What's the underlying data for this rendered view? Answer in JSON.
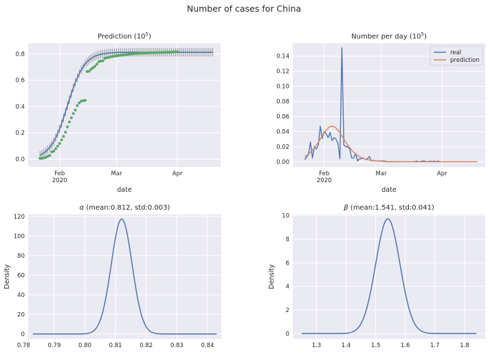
{
  "figure": {
    "title": "Number of cases for China"
  },
  "chart_data": [
    {
      "id": "prediction",
      "type": "line",
      "title": "Prediction (10",
      "title_sup": "5",
      "title_end": ")",
      "xlabel": "date",
      "ylabel": "",
      "ylim": [
        -0.06,
        0.88
      ],
      "xlim": [
        "2020-01-16",
        "2020-04-23"
      ],
      "x_ticks": [
        {
          "date": "2020-02-01",
          "label": "Feb",
          "label2": "2020"
        },
        {
          "date": "2020-03-01",
          "label": "Mar",
          "label2": ""
        },
        {
          "date": "2020-04-01",
          "label": "Apr",
          "label2": ""
        }
      ],
      "y_ticks": [
        0.0,
        0.2,
        0.4,
        0.6,
        0.8
      ],
      "y_tick_labels": [
        "0.0",
        "0.2",
        "0.4",
        "0.6",
        "0.8"
      ],
      "model": {
        "start": "2020-01-22",
        "end": "2020-04-19",
        "asymptote": 0.812,
        "midpoint": "2020-02-05",
        "growth": 0.232,
        "error_band": 0.032
      },
      "observed": {
        "start": "2020-01-22",
        "values": [
          0.006,
          0.006,
          0.009,
          0.014,
          0.021,
          0.029,
          0.055,
          0.061,
          0.079,
          0.098,
          0.119,
          0.146,
          0.173,
          0.205,
          0.245,
          0.283,
          0.314,
          0.346,
          0.373,
          0.407,
          0.427,
          0.441,
          0.444,
          0.447,
          0.666,
          0.668,
          0.683,
          0.694,
          0.706,
          0.722,
          0.741,
          0.745,
          0.747,
          0.765,
          0.77,
          0.773,
          0.777,
          0.78,
          0.783,
          0.785,
          0.787,
          0.789,
          0.791,
          0.793,
          0.794,
          0.796,
          0.798,
          0.8,
          0.802,
          0.803,
          0.804,
          0.805,
          0.806,
          0.806,
          0.807,
          0.807,
          0.808,
          0.808,
          0.809,
          0.809,
          0.809,
          0.81,
          0.81,
          0.811,
          0.811,
          0.812,
          0.812,
          0.813,
          0.814,
          0.815,
          0.815
        ]
      },
      "colors": {
        "model": "#4c72b0",
        "observed": "#55a868",
        "error_bars": "#8c8c8c"
      }
    },
    {
      "id": "per-day",
      "type": "line",
      "title": "Number per day (10",
      "title_sup": "5",
      "title_end": ")",
      "xlabel": "date",
      "ylabel": "",
      "ylim": [
        -0.007,
        0.157
      ],
      "xlim": [
        "2020-01-16",
        "2020-04-23"
      ],
      "x_ticks": [
        {
          "date": "2020-02-01",
          "label": "Feb",
          "label2": "2020"
        },
        {
          "date": "2020-03-01",
          "label": "Mar",
          "label2": ""
        },
        {
          "date": "2020-04-01",
          "label": "Apr",
          "label2": ""
        }
      ],
      "y_ticks": [
        0.0,
        0.02,
        0.04,
        0.06,
        0.08,
        0.1,
        0.12,
        0.14
      ],
      "y_tick_labels": [
        "0.00",
        "0.02",
        "0.04",
        "0.06",
        "0.08",
        "0.10",
        "0.12",
        "0.14"
      ],
      "legend": {
        "placement": "top-right",
        "entries": [
          "real",
          "prediction"
        ]
      },
      "series": [
        {
          "name": "real",
          "start": "2020-01-22",
          "values": [
            0.003,
            0.006,
            0.01,
            0.026,
            0.005,
            0.02,
            0.017,
            0.022,
            0.047,
            0.031,
            0.04,
            0.037,
            0.032,
            0.039,
            0.028,
            0.032,
            0.03,
            0.024,
            0.004,
            0.151,
            0.022,
            0.02,
            0.02,
            0.017,
            0.005,
            0.005,
            0.011,
            0.001,
            0.004,
            0.004,
            0.005,
            0.003,
            0.004,
            0.007,
            0.001,
            0.002,
            0.001,
            0.001,
            0.001,
            0.001,
            0.001,
            0.001,
            0.0,
            0.0,
            0.0,
            0.0,
            0.0,
            0.0,
            0.0,
            0.0,
            0.0,
            0.0,
            0.0,
            0.0,
            0.0,
            0.0,
            0.0,
            0.001,
            0.0,
            0.0,
            0.001,
            0.001,
            0.0,
            0.0,
            0.001,
            0.0,
            0.001,
            0.0,
            0.001,
            0.0,
            0.0
          ],
          "color": "#4c72b0"
        },
        {
          "name": "prediction",
          "model": "logistic-derivative",
          "color": "#dd8452"
        }
      ]
    },
    {
      "id": "alpha",
      "type": "line",
      "title_symbol": "α",
      "title": " (mean:0.812, std:0.003)",
      "xlabel": "",
      "ylabel": "Density",
      "xlim": [
        0.7815,
        0.8445
      ],
      "ylim": [
        -5,
        122
      ],
      "x_ticks": [
        0.78,
        0.79,
        0.8,
        0.81,
        0.82,
        0.83,
        0.84
      ],
      "x_tick_labels": [
        "0.78",
        "0.79",
        "0.80",
        "0.81",
        "0.82",
        "0.83",
        "0.84"
      ],
      "y_ticks": [
        0,
        20,
        40,
        60,
        80,
        100,
        120
      ],
      "y_tick_labels": [
        "0",
        "20",
        "40",
        "60",
        "80",
        "100",
        "120"
      ],
      "density": {
        "mean": 0.812,
        "std": 0.0034,
        "range": [
          0.783,
          0.843
        ]
      },
      "color": "#4c72b0"
    },
    {
      "id": "beta",
      "type": "line",
      "title_symbol": "β",
      "title": " (mean:1.541, std:0.041)",
      "xlabel": "",
      "ylabel": "Density",
      "xlim": [
        1.22,
        1.87
      ],
      "ylim": [
        -0.45,
        10.1
      ],
      "x_ticks": [
        1.3,
        1.4,
        1.5,
        1.6,
        1.7,
        1.8
      ],
      "x_tick_labels": [
        "1.3",
        "1.4",
        "1.5",
        "1.6",
        "1.7",
        "1.8"
      ],
      "y_ticks": [
        0,
        2,
        4,
        6,
        8,
        10
      ],
      "y_tick_labels": [
        "0",
        "2",
        "4",
        "6",
        "8",
        "10"
      ],
      "density": {
        "mean": 1.541,
        "std": 0.041,
        "range": [
          1.25,
          1.84
        ]
      },
      "color": "#4c72b0"
    }
  ]
}
